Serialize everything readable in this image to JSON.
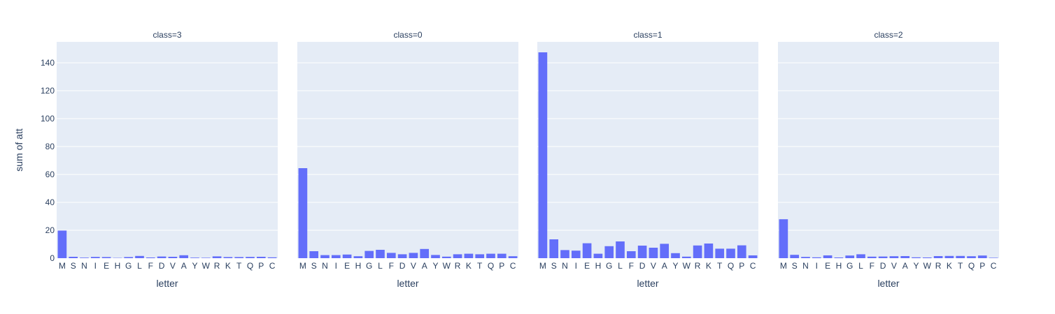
{
  "chart_data": {
    "type": "bar",
    "ylabel": "sum of att",
    "xlabel": "letter",
    "ylim": [
      0,
      155
    ],
    "yticks": [
      0,
      20,
      40,
      60,
      80,
      100,
      120,
      140
    ],
    "grid": true,
    "bar_color": "#636efa",
    "plot_bg": "#e5ecf6",
    "grid_color": "#ffffff",
    "text_color": "#2a3f5f",
    "categories": [
      "M",
      "S",
      "N",
      "I",
      "E",
      "H",
      "G",
      "L",
      "F",
      "D",
      "V",
      "A",
      "Y",
      "W",
      "R",
      "K",
      "T",
      "Q",
      "P",
      "C"
    ],
    "panels": [
      {
        "title": "class=3",
        "values": [
          19.8,
          1.0,
          0.4,
          0.9,
          0.8,
          0.2,
          0.8,
          1.6,
          0.5,
          1.2,
          1.0,
          2.1,
          0.4,
          0.3,
          1.3,
          0.8,
          0.8,
          0.9,
          1.0,
          0.6
        ]
      },
      {
        "title": "class=0",
        "values": [
          64.5,
          5.0,
          2.2,
          2.2,
          2.6,
          1.4,
          5.2,
          6.0,
          3.8,
          2.8,
          3.8,
          6.6,
          2.3,
          1.1,
          2.8,
          3.2,
          2.8,
          3.2,
          3.2,
          1.4
        ]
      },
      {
        "title": "class=1",
        "values": [
          147.5,
          13.5,
          5.8,
          5.4,
          10.7,
          3.2,
          8.6,
          12.0,
          5.0,
          9.0,
          7.5,
          10.3,
          3.6,
          1.1,
          9.1,
          10.5,
          6.8,
          6.8,
          9.2,
          2.0
        ]
      },
      {
        "title": "class=2",
        "values": [
          27.9,
          2.4,
          0.9,
          0.6,
          2.0,
          0.5,
          1.9,
          2.8,
          1.1,
          1.2,
          1.4,
          1.5,
          0.6,
          0.5,
          1.5,
          1.6,
          1.6,
          1.4,
          1.9,
          0.3
        ]
      }
    ]
  }
}
